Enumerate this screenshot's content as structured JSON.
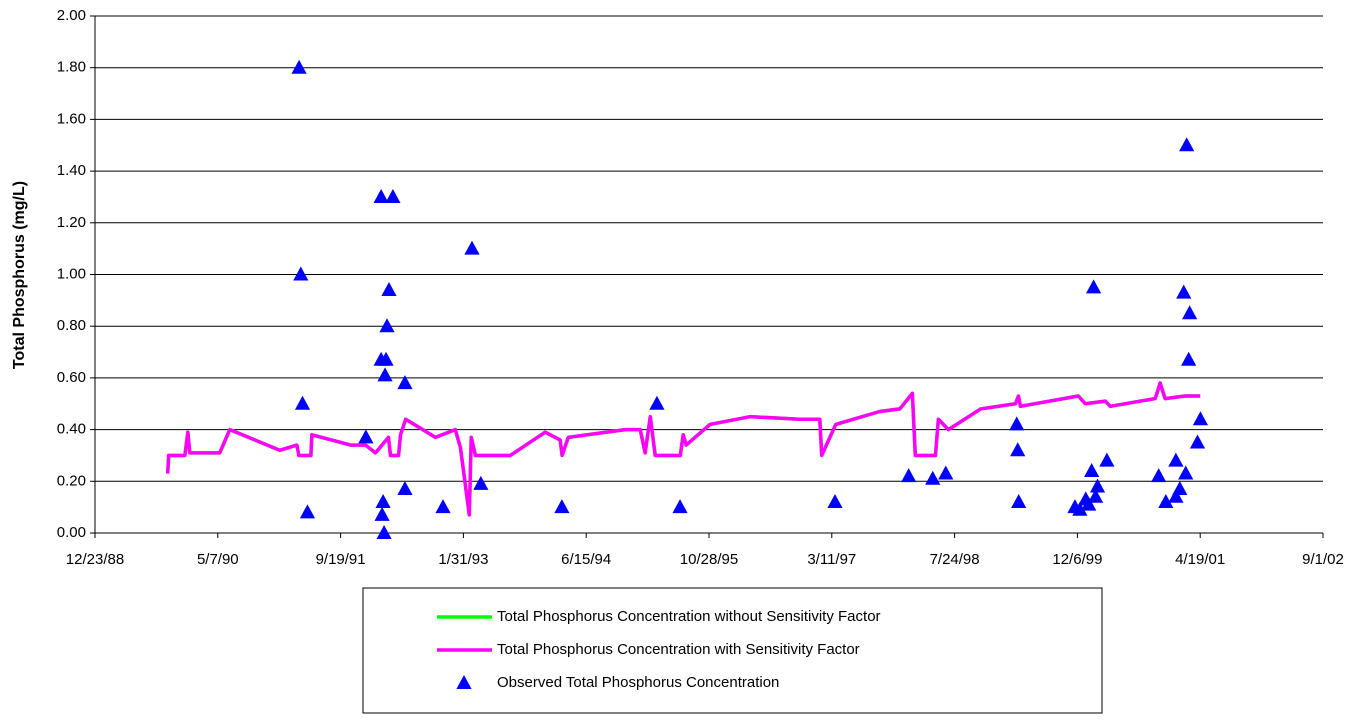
{
  "chart_data": {
    "type": "line-scatter",
    "y_label": "Total Phosphorus (mg/L)",
    "ylim": [
      0,
      2
    ],
    "yticks": [
      {
        "value": 0,
        "label": "0.00"
      },
      {
        "value": 0.2,
        "label": "0.20"
      },
      {
        "value": 0.4,
        "label": "0.40"
      },
      {
        "value": 0.6,
        "label": "0.60"
      },
      {
        "value": 0.8,
        "label": "0.80"
      },
      {
        "value": 1,
        "label": "1.00"
      },
      {
        "value": 1.2,
        "label": "1.20"
      },
      {
        "value": 1.4,
        "label": "1.40"
      },
      {
        "value": 1.6,
        "label": "1.60"
      },
      {
        "value": 1.8,
        "label": "1.80"
      },
      {
        "value": 2,
        "label": "2.00"
      }
    ],
    "xlim": [
      "1988-12-23",
      "2002-09-01"
    ],
    "xticks": [
      {
        "value": "1988-12-23",
        "label": "12/23/88"
      },
      {
        "value": "1990-05-07",
        "label": "5/7/90"
      },
      {
        "value": "1991-09-19",
        "label": "9/19/91"
      },
      {
        "value": "1993-01-31",
        "label": "1/31/93"
      },
      {
        "value": "1994-06-15",
        "label": "6/15/94"
      },
      {
        "value": "1995-10-28",
        "label": "10/28/95"
      },
      {
        "value": "1997-03-11",
        "label": "3/11/97"
      },
      {
        "value": "1998-07-24",
        "label": "7/24/98"
      },
      {
        "value": "1999-12-06",
        "label": "12/6/99"
      },
      {
        "value": "2001-04-19",
        "label": "4/19/01"
      },
      {
        "value": "2002-09-01",
        "label": "9/1/02"
      }
    ],
    "grid": true,
    "series": [
      {
        "name": "Total Phosphorus Concentration without Sensitivity Factor",
        "kind": "line",
        "color": "#00ff00",
        "x": [
          "1989-10-15",
          "1989-10-19",
          "1989-12-24",
          "1990-01-05",
          "1990-01-13",
          "1990-05-15",
          "1990-06-25",
          "1991-01-14",
          "1991-03-25",
          "1991-04-02",
          "1991-05-21",
          "1991-05-25",
          "1991-10-30",
          "1991-12-30",
          "1992-02-08",
          "1992-04-01",
          "1992-04-09",
          "1992-05-12",
          "1992-05-20",
          "1992-06-10",
          "1992-10-09",
          "1992-12-29",
          "1993-01-19",
          "1993-02-24",
          "1993-03-04",
          "1993-03-21",
          "1993-08-10",
          "1993-12-30",
          "1994-03-01",
          "1994-03-09",
          "1994-04-03",
          "1994-11-21",
          "1995-01-21",
          "1995-02-10",
          "1995-03-03",
          "1995-03-23",
          "1995-07-03",
          "1995-07-15",
          "1995-07-27",
          "1995-11-01",
          "1996-04-12",
          "1996-11-01",
          "1997-01-21",
          "1997-01-29",
          "1997-03-27",
          "1997-09-22",
          "1997-12-13",
          "1998-02-02",
          "1998-02-14",
          "1998-05-07",
          "1998-05-19",
          "1998-06-29",
          "1998-11-07",
          "1999-03-29",
          "1999-04-10",
          "1999-04-18",
          "1999-12-10",
          "2000-01-07",
          "2000-03-29",
          "2000-04-18",
          "2000-10-18",
          "2000-11-07",
          "2000-11-27",
          "2001-02-17",
          "2001-04-19"
        ],
        "values": [
          0.23,
          0.3,
          0.3,
          0.39,
          0.31,
          0.31,
          0.4,
          0.32,
          0.34,
          0.3,
          0.3,
          0.38,
          0.34,
          0.34,
          0.31,
          0.37,
          0.3,
          0.3,
          0.38,
          0.44,
          0.37,
          0.4,
          0.33,
          0.07,
          0.37,
          0.3,
          0.3,
          0.39,
          0.36,
          0.3,
          0.37,
          0.4,
          0.4,
          0.31,
          0.45,
          0.3,
          0.3,
          0.38,
          0.34,
          0.42,
          0.45,
          0.44,
          0.44,
          0.3,
          0.42,
          0.47,
          0.48,
          0.54,
          0.3,
          0.3,
          0.44,
          0.4,
          0.48,
          0.5,
          0.53,
          0.49,
          0.53,
          0.5,
          0.51,
          0.49,
          0.52,
          0.58,
          0.52,
          0.53,
          0.53
        ]
      },
      {
        "name": "Total Phosphorus Concentration with Sensitivity Factor",
        "kind": "line",
        "color": "#ff00ff",
        "x": [
          "1989-10-15",
          "1989-10-19",
          "1989-12-24",
          "1990-01-05",
          "1990-01-13",
          "1990-05-15",
          "1990-06-25",
          "1991-01-14",
          "1991-03-25",
          "1991-04-02",
          "1991-05-21",
          "1991-05-25",
          "1991-10-30",
          "1991-12-30",
          "1992-02-08",
          "1992-04-01",
          "1992-04-09",
          "1992-05-12",
          "1992-05-20",
          "1992-06-10",
          "1992-10-09",
          "1992-12-29",
          "1993-01-19",
          "1993-02-24",
          "1993-03-04",
          "1993-03-21",
          "1993-08-10",
          "1993-12-30",
          "1994-03-01",
          "1994-03-09",
          "1994-04-03",
          "1994-11-21",
          "1995-01-21",
          "1995-02-10",
          "1995-03-03",
          "1995-03-23",
          "1995-07-03",
          "1995-07-15",
          "1995-07-27",
          "1995-11-01",
          "1996-04-12",
          "1996-11-01",
          "1997-01-21",
          "1997-01-29",
          "1997-03-27",
          "1997-09-22",
          "1997-12-13",
          "1998-02-02",
          "1998-02-14",
          "1998-05-07",
          "1998-05-19",
          "1998-06-29",
          "1998-11-07",
          "1999-03-29",
          "1999-04-10",
          "1999-04-18",
          "1999-12-10",
          "2000-01-07",
          "2000-03-29",
          "2000-04-18",
          "2000-10-18",
          "2000-11-07",
          "2000-11-27",
          "2001-02-17",
          "2001-04-19"
        ],
        "values": [
          0.23,
          0.3,
          0.3,
          0.39,
          0.31,
          0.31,
          0.4,
          0.32,
          0.34,
          0.3,
          0.3,
          0.38,
          0.34,
          0.34,
          0.31,
          0.37,
          0.3,
          0.3,
          0.38,
          0.44,
          0.37,
          0.4,
          0.33,
          0.07,
          0.37,
          0.3,
          0.3,
          0.39,
          0.36,
          0.3,
          0.37,
          0.4,
          0.4,
          0.31,
          0.45,
          0.3,
          0.3,
          0.38,
          0.34,
          0.42,
          0.45,
          0.44,
          0.44,
          0.3,
          0.42,
          0.47,
          0.48,
          0.54,
          0.3,
          0.3,
          0.44,
          0.4,
          0.48,
          0.5,
          0.53,
          0.49,
          0.53,
          0.5,
          0.51,
          0.49,
          0.52,
          0.58,
          0.52,
          0.53,
          0.53
        ]
      },
      {
        "name": "Observed Total Phosphorus Concentration",
        "kind": "scatter",
        "color": "#0000ff",
        "x": [
          "1991-04-03",
          "1991-04-10",
          "1991-04-17",
          "1991-05-07",
          "1991-12-31",
          "1992-03-02",
          "1992-03-02",
          "1992-03-10",
          "1992-03-06",
          "1992-03-14",
          "1992-03-22",
          "1992-03-18",
          "1992-03-26",
          "1992-04-03",
          "1992-04-19",
          "1992-06-07",
          "1992-06-07",
          "1992-11-09",
          "1993-03-07",
          "1993-04-12",
          "1994-03-08",
          "1995-03-30",
          "1995-07-02",
          "1997-03-24",
          "1998-01-18",
          "1998-04-26",
          "1998-06-18",
          "1999-04-03",
          "1999-04-07",
          "1999-04-11",
          "1999-11-26",
          "1999-12-16",
          "2000-01-09",
          "2000-01-21",
          "2000-02-02",
          "2000-02-10",
          "2000-02-18",
          "2000-02-26",
          "2000-04-04",
          "2000-11-01",
          "2000-11-30",
          "2001-01-10",
          "2001-01-10",
          "2001-01-26",
          "2001-02-11",
          "2001-02-19",
          "2001-02-23",
          "2001-03-03",
          "2001-03-07",
          "2001-04-08",
          "2001-04-20"
        ],
        "values": [
          1.8,
          1.0,
          0.5,
          0.08,
          0.37,
          1.3,
          0.67,
          0.12,
          0.07,
          0.0,
          0.67,
          0.61,
          0.8,
          0.94,
          1.3,
          0.58,
          0.17,
          0.1,
          1.1,
          0.19,
          0.1,
          0.5,
          0.1,
          0.12,
          0.22,
          0.21,
          0.23,
          0.42,
          0.32,
          0.12,
          0.1,
          0.09,
          0.13,
          0.11,
          0.24,
          0.95,
          0.14,
          0.18,
          0.28,
          0.22,
          0.12,
          0.28,
          0.14,
          0.17,
          0.93,
          0.23,
          1.5,
          0.67,
          0.85,
          0.35,
          0.44
        ]
      }
    ]
  }
}
